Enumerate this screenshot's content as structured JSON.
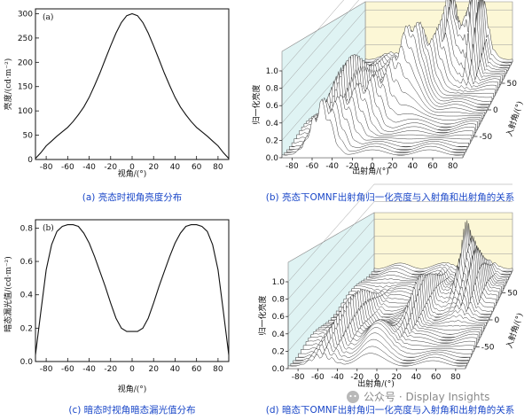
{
  "chart_data": [
    {
      "type": "line",
      "panel_tag": "(a)",
      "caption": "(a) 亮态时视角亮度分布",
      "xlabel": "视角/(°)",
      "ylabel": "亮度/(cd·m⁻²)",
      "xlim": [
        -90,
        90
      ],
      "ylim": [
        0,
        310
      ],
      "xticks": [
        -80,
        -60,
        -40,
        -20,
        0,
        20,
        40,
        60,
        80
      ],
      "yticks": [
        0,
        50,
        100,
        150,
        200,
        250,
        300
      ],
      "series": [
        {
          "x": [
            -90,
            -85,
            -80,
            -75,
            -70,
            -65,
            -60,
            -55,
            -50,
            -45,
            -40,
            -35,
            -30,
            -25,
            -20,
            -15,
            -10,
            -5,
            0,
            5,
            10,
            15,
            20,
            25,
            30,
            35,
            40,
            45,
            50,
            55,
            60,
            65,
            70,
            75,
            80,
            85,
            90
          ],
          "y": [
            2,
            14,
            28,
            38,
            48,
            57,
            66,
            78,
            92,
            108,
            128,
            152,
            178,
            206,
            234,
            260,
            282,
            296,
            300,
            296,
            282,
            260,
            234,
            206,
            178,
            152,
            128,
            108,
            92,
            78,
            66,
            57,
            48,
            38,
            28,
            14,
            2
          ]
        }
      ]
    },
    {
      "type": "surface3d",
      "caption": "(b) 亮态下OMNF出射角归一化亮度与入射角和出射角的关系",
      "xlabel": "出射角/(°)",
      "ylabel": "入射角/(°)",
      "zlabel": "归一化亮度",
      "xticks": [
        -80,
        -60,
        -40,
        -20,
        0,
        20,
        40,
        60,
        80
      ],
      "yticks": [
        -50,
        0,
        50
      ],
      "zticks": [
        0,
        0.2,
        0.4,
        0.6,
        0.8,
        1.0
      ],
      "zlim": [
        0,
        1.0
      ]
    },
    {
      "type": "line",
      "panel_tag": "(b)",
      "caption": "(c) 暗态时视角暗态漏光值分布",
      "xlabel": "视角/(°)",
      "ylabel": "暗态漏光值/(cd·m⁻²)",
      "xlim": [
        -90,
        90
      ],
      "ylim": [
        0,
        0.85
      ],
      "xticks": [
        -80,
        -60,
        -40,
        -20,
        0,
        20,
        40,
        60,
        80
      ],
      "yticks": [
        0,
        0.2,
        0.4,
        0.6,
        0.8
      ],
      "series": [
        {
          "x": [
            -90,
            -85,
            -80,
            -75,
            -70,
            -65,
            -60,
            -55,
            -50,
            -45,
            -40,
            -35,
            -30,
            -25,
            -20,
            -15,
            -10,
            -5,
            0,
            5,
            10,
            15,
            20,
            25,
            30,
            35,
            40,
            45,
            50,
            55,
            60,
            65,
            70,
            75,
            80,
            85,
            90
          ],
          "y": [
            0.04,
            0.3,
            0.55,
            0.7,
            0.78,
            0.81,
            0.82,
            0.82,
            0.81,
            0.77,
            0.71,
            0.63,
            0.54,
            0.45,
            0.35,
            0.26,
            0.2,
            0.18,
            0.18,
            0.18,
            0.2,
            0.26,
            0.35,
            0.45,
            0.54,
            0.63,
            0.71,
            0.77,
            0.81,
            0.82,
            0.82,
            0.81,
            0.78,
            0.7,
            0.55,
            0.3,
            0.04
          ]
        }
      ]
    },
    {
      "type": "surface3d",
      "caption": "(d) 暗态下OMNF出射角归一化亮度与入射角和出射角的关系",
      "xlabel": "出射角/(°)",
      "ylabel": "入射角/(°)",
      "zlabel": "归一化亮度",
      "xticks": [
        -80,
        -60,
        -40,
        -20,
        0,
        20,
        40,
        60,
        80
      ],
      "yticks": [
        -50,
        0,
        50
      ],
      "zticks": [
        0,
        0.2,
        0.4,
        0.6,
        0.8,
        1.0
      ],
      "zlim": [
        0,
        1.0
      ]
    }
  ],
  "watermark": "公众号 · Display Insights",
  "colors": {
    "caption": "#1a47c8",
    "back_wall": "#fcf7d6",
    "side_wall": "#dff3f3",
    "floor": "#cfcfcf"
  }
}
